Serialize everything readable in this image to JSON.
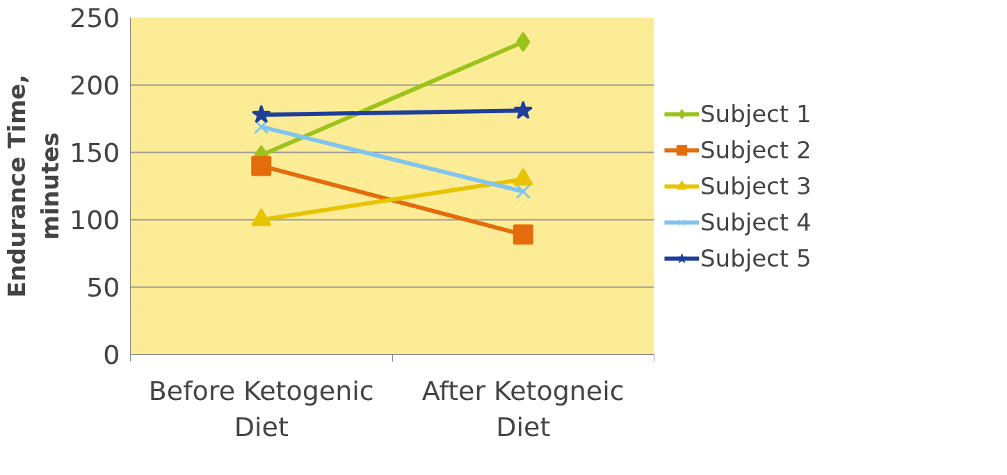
{
  "chart_data": {
    "type": "line",
    "ylabel": "Endurance Time,\nminutes",
    "categories": [
      "Before Ketogenic\nDiet",
      "After Ketogneic\nDiet"
    ],
    "ylim": [
      0,
      250
    ],
    "yticks": [
      0,
      50,
      100,
      150,
      200,
      250
    ],
    "grid": "y",
    "legend": "right",
    "series": [
      {
        "name": "Subject 1",
        "color": "#9bc31c",
        "marker": "diamond",
        "values": [
          148,
          232
        ]
      },
      {
        "name": "Subject 2",
        "color": "#e46c0a",
        "marker": "square",
        "values": [
          140,
          89
        ]
      },
      {
        "name": "Subject 3",
        "color": "#e8c400",
        "marker": "triangle",
        "values": [
          100,
          130
        ]
      },
      {
        "name": "Subject 4",
        "color": "#80c4f0",
        "marker": "cross",
        "values": [
          169,
          121
        ]
      },
      {
        "name": "Subject 5",
        "color": "#1f3f99",
        "marker": "star",
        "values": [
          178,
          181
        ]
      }
    ]
  }
}
